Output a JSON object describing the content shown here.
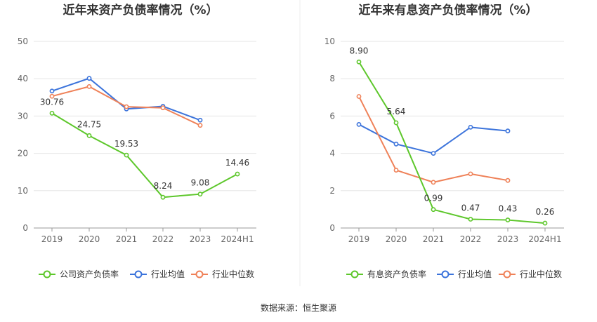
{
  "source": "数据来源：恒生聚源",
  "chart_data": [
    {
      "type": "line",
      "title": "近年来资产负债率情况（%）",
      "categories": [
        "2019",
        "2020",
        "2021",
        "2022",
        "2023",
        "2024H1"
      ],
      "ylim": [
        0,
        50
      ],
      "yticks": [
        0,
        10,
        20,
        30,
        40,
        50
      ],
      "grid": true,
      "legend_position": "bottom",
      "series": [
        {
          "name": "公司资产负债率",
          "color": "#5dc72b",
          "values": [
            30.76,
            24.75,
            19.53,
            8.24,
            9.08,
            14.46
          ],
          "labels": [
            "30.76",
            "24.75",
            "19.53",
            "8.24",
            "9.08",
            "14.46"
          ]
        },
        {
          "name": "行业均值",
          "color": "#3b73db",
          "values": [
            36.7,
            40.1,
            31.9,
            32.6,
            28.9,
            null
          ]
        },
        {
          "name": "行业中位数",
          "color": "#ef8158",
          "values": [
            35.3,
            37.9,
            32.5,
            32.2,
            27.5,
            null
          ]
        }
      ]
    },
    {
      "type": "line",
      "title": "近年来有息资产负债率情况（%）",
      "categories": [
        "2019",
        "2020",
        "2021",
        "2022",
        "2023",
        "2024H1"
      ],
      "ylim": [
        0,
        10
      ],
      "yticks": [
        0,
        2,
        4,
        6,
        8,
        10
      ],
      "grid": true,
      "legend_position": "bottom",
      "series": [
        {
          "name": "有息资产负债率",
          "color": "#5dc72b",
          "values": [
            8.9,
            5.64,
            0.99,
            0.47,
            0.43,
            0.26
          ],
          "labels": [
            "8.90",
            "5.64",
            "0.99",
            "0.47",
            "0.43",
            "0.26"
          ]
        },
        {
          "name": "行业均值",
          "color": "#3b73db",
          "values": [
            5.55,
            4.5,
            4.0,
            5.4,
            5.2,
            null
          ]
        },
        {
          "name": "行业中位数",
          "color": "#ef8158",
          "values": [
            7.05,
            3.1,
            2.45,
            2.9,
            2.55,
            null
          ]
        }
      ]
    }
  ]
}
